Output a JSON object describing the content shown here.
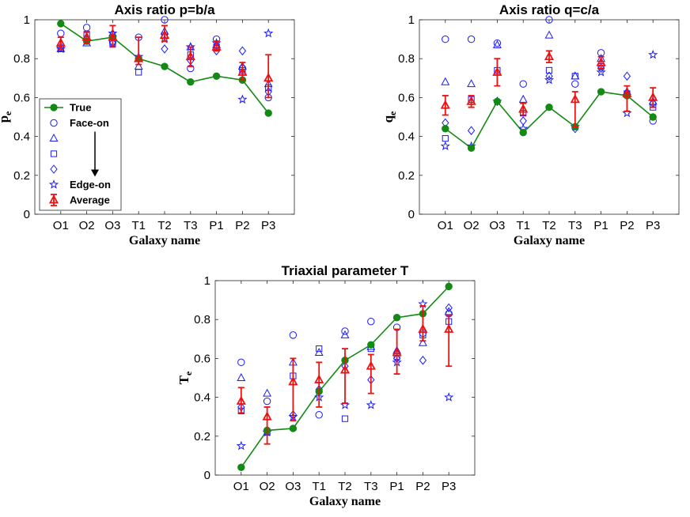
{
  "chart_data": [
    {
      "id": "p",
      "type": "scatter",
      "title": "Axis ratio p=b/a",
      "xlabel": "Galaxy name",
      "ylabel": "p",
      "ylabel_sub": "e",
      "categories": [
        "O1",
        "O2",
        "O3",
        "T1",
        "T2",
        "T3",
        "P1",
        "P2",
        "P3"
      ],
      "ylim": [
        0,
        1
      ],
      "yticks": [
        "0",
        "0.2",
        "0.4",
        "0.6",
        "0.8",
        "1"
      ],
      "true": [
        0.98,
        0.89,
        0.91,
        0.8,
        0.76,
        0.68,
        0.71,
        0.69,
        0.52
      ],
      "faceon": [
        0.93,
        0.96,
        0.89,
        0.91,
        1.0,
        0.75,
        0.9,
        0.75,
        0.6
      ],
      "tri": [
        0.85,
        0.88,
        0.93,
        0.76,
        0.94,
        0.86,
        0.87,
        0.76,
        0.67
      ],
      "sq": [
        0.85,
        0.92,
        0.88,
        0.73,
        0.92,
        0.82,
        0.86,
        0.74,
        0.65
      ],
      "dia": [
        0.86,
        0.9,
        0.88,
        0.8,
        0.85,
        0.79,
        0.84,
        0.84,
        0.63
      ],
      "edgeon": [
        0.85,
        0.89,
        0.93,
        0.81,
        0.9,
        0.86,
        0.88,
        0.59,
        0.93
      ],
      "avg": [
        0.88,
        0.91,
        0.91,
        0.8,
        0.92,
        0.81,
        0.86,
        0.73,
        0.7
      ],
      "err_low": [
        0.85,
        0.88,
        0.86,
        0.77,
        0.89,
        0.76,
        0.84,
        0.69,
        0.6
      ],
      "err_high": [
        0.91,
        0.94,
        0.97,
        0.91,
        0.97,
        0.86,
        0.89,
        0.78,
        0.82
      ],
      "legend": [
        "True",
        "Face-on",
        "",
        "",
        "",
        "Edge-on",
        "Average"
      ]
    },
    {
      "id": "q",
      "type": "scatter",
      "title": "Axis ratio q=c/a",
      "xlabel": "Galaxy name",
      "ylabel": "q",
      "ylabel_sub": "e",
      "categories": [
        "O1",
        "O2",
        "O3",
        "T1",
        "T2",
        "T3",
        "P1",
        "P2",
        "P3"
      ],
      "ylim": [
        0,
        1
      ],
      "yticks": [
        "0",
        "0.2",
        "0.4",
        "0.6",
        "0.8",
        "1"
      ],
      "true": [
        0.44,
        0.34,
        0.58,
        0.42,
        0.55,
        0.45,
        0.63,
        0.61,
        0.5
      ],
      "faceon": [
        0.9,
        0.9,
        0.88,
        0.67,
        1.0,
        0.67,
        0.83,
        0.61,
        0.48
      ],
      "tri": [
        0.68,
        0.67,
        0.87,
        0.59,
        0.92,
        0.71,
        0.8,
        0.63,
        0.58
      ],
      "sq": [
        0.39,
        0.59,
        0.74,
        0.52,
        0.74,
        0.71,
        0.76,
        0.62,
        0.55
      ],
      "dia": [
        0.47,
        0.43,
        0.58,
        0.48,
        0.71,
        0.44,
        0.75,
        0.71,
        0.57
      ],
      "edgeon": [
        0.35,
        0.35,
        0.58,
        0.44,
        0.69,
        0.45,
        0.73,
        0.52,
        0.82
      ],
      "avg": [
        0.56,
        0.58,
        0.73,
        0.54,
        0.81,
        0.59,
        0.78,
        0.62,
        0.6
      ],
      "err_low": [
        0.51,
        0.55,
        0.66,
        0.51,
        0.78,
        0.45,
        0.75,
        0.53,
        0.55
      ],
      "err_high": [
        0.61,
        0.61,
        0.8,
        0.57,
        0.84,
        0.63,
        0.81,
        0.66,
        0.65
      ]
    },
    {
      "id": "t",
      "type": "scatter",
      "title": "Triaxial parameter T",
      "xlabel": "Galaxy name",
      "ylabel": "T",
      "ylabel_sub": "e",
      "categories": [
        "O1",
        "O2",
        "O3",
        "T1",
        "T2",
        "T3",
        "P1",
        "P2",
        "P3"
      ],
      "ylim": [
        0,
        1
      ],
      "yticks": [
        "0",
        "0.2",
        "0.4",
        "0.6",
        "0.8",
        "1"
      ],
      "true": [
        0.04,
        0.23,
        0.24,
        0.43,
        0.59,
        0.67,
        0.81,
        0.83,
        0.97
      ],
      "faceon": [
        0.58,
        0.38,
        0.72,
        0.31,
        0.74,
        0.79,
        0.76,
        0.73,
        0.83
      ],
      "tri": [
        0.5,
        0.42,
        0.58,
        0.63,
        0.72,
        0.66,
        0.64,
        0.68,
        0.84
      ],
      "sq": [
        0.33,
        0.22,
        0.51,
        0.65,
        0.29,
        0.65,
        0.61,
        0.72,
        0.79
      ],
      "dia": [
        0.35,
        0.23,
        0.31,
        0.44,
        0.56,
        0.49,
        0.6,
        0.59,
        0.86
      ],
      "edgeon": [
        0.15,
        0.22,
        0.3,
        0.4,
        0.36,
        0.36,
        0.58,
        0.88,
        0.4
      ],
      "avg": [
        0.38,
        0.3,
        0.48,
        0.49,
        0.54,
        0.56,
        0.63,
        0.75,
        0.75
      ],
      "err_low": [
        0.32,
        0.16,
        0.28,
        0.35,
        0.37,
        0.42,
        0.52,
        0.69,
        0.56
      ],
      "err_high": [
        0.45,
        0.35,
        0.6,
        0.58,
        0.65,
        0.62,
        0.75,
        0.87,
        0.82
      ]
    }
  ],
  "colors": {
    "true": "#138a13",
    "markers": "#1a1aff",
    "average": "#ee1111",
    "axis": "#262626"
  }
}
